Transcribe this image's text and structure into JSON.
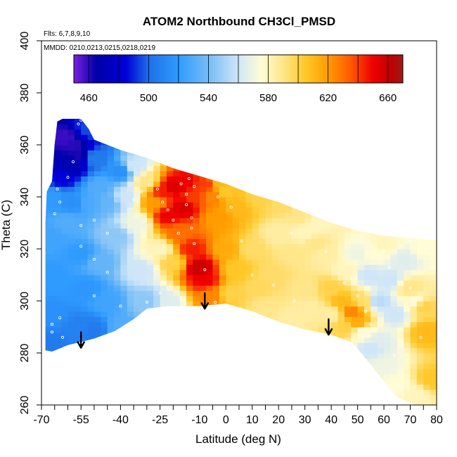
{
  "chart_data": {
    "type": "heatmap",
    "title": "ATOM2 Northbound CH3Cl_PMSD",
    "flights_label": "Flts: 6,7,8,9,10",
    "dates_label": "MMDD: 0210,0213,0215,0218,0219",
    "xlabel": "Latitude (deg N)",
    "ylabel": "Theta (C)",
    "xlim": [
      -70,
      80
    ],
    "ylim": [
      260,
      400
    ],
    "x_ticks": [
      -70,
      -55,
      -40,
      -25,
      -10,
      0,
      10,
      20,
      30,
      40,
      50,
      60,
      70,
      80
    ],
    "x_minor_ticks": [
      -65,
      -60,
      -50,
      -45,
      -35,
      -30,
      -20,
      -15,
      -5,
      5,
      15,
      25,
      35,
      45,
      55,
      65,
      75
    ],
    "y_ticks": [
      260,
      280,
      300,
      320,
      340,
      360,
      380,
      400
    ],
    "colorbar": {
      "min": 450,
      "max": 670,
      "tick_values": [
        460,
        500,
        540,
        580,
        620,
        660
      ],
      "bin_edges": [
        450,
        460,
        480,
        500,
        520,
        540,
        560,
        580,
        600,
        620,
        640,
        660,
        670
      ],
      "color_stops": [
        [
          450,
          "#7b1fe0"
        ],
        [
          465,
          "#0000a8"
        ],
        [
          485,
          "#0000d8"
        ],
        [
          500,
          "#1e6fe6"
        ],
        [
          520,
          "#2f9bff"
        ],
        [
          540,
          "#76bdf5"
        ],
        [
          560,
          "#cfe6f8"
        ],
        [
          575,
          "#fffcd6"
        ],
        [
          590,
          "#ffe68a"
        ],
        [
          605,
          "#ffc828"
        ],
        [
          620,
          "#ff9c00"
        ],
        [
          635,
          "#ff5a00"
        ],
        [
          650,
          "#ee0000"
        ],
        [
          662,
          "#c00000"
        ],
        [
          670,
          "#9c1a1a"
        ]
      ]
    },
    "grid": false,
    "field_boundary": [
      [
        -68.5,
        281
      ],
      [
        -66,
        280.5
      ],
      [
        -60,
        283
      ],
      [
        -50,
        285.5
      ],
      [
        -42,
        288.5
      ],
      [
        -35,
        293
      ],
      [
        -30,
        297
      ],
      [
        -22,
        298
      ],
      [
        -10,
        298
      ],
      [
        0,
        299
      ],
      [
        10,
        296
      ],
      [
        20,
        292
      ],
      [
        30,
        289
      ],
      [
        40,
        287
      ],
      [
        48,
        284
      ],
      [
        53,
        278
      ],
      [
        60,
        269
      ],
      [
        65,
        263
      ],
      [
        72,
        260
      ],
      [
        80,
        260
      ],
      [
        80,
        323.5
      ],
      [
        72,
        324
      ],
      [
        60,
        325
      ],
      [
        50,
        327
      ],
      [
        40,
        330
      ],
      [
        30,
        334
      ],
      [
        20,
        338
      ],
      [
        10,
        341
      ],
      [
        0,
        345
      ],
      [
        -10,
        348
      ],
      [
        -20,
        351
      ],
      [
        -30,
        355
      ],
      [
        -40,
        358
      ],
      [
        -50,
        362
      ],
      [
        -52,
        366
      ],
      [
        -55,
        370
      ],
      [
        -62,
        370
      ],
      [
        -64,
        369
      ],
      [
        -65,
        360
      ],
      [
        -66,
        346
      ],
      [
        -68,
        342
      ],
      [
        -68.5,
        330
      ]
    ],
    "anchors": [
      [
        -61,
        363,
        458
      ],
      [
        -58,
        360,
        460
      ],
      [
        -56,
        356,
        462
      ],
      [
        -59,
        352,
        470
      ],
      [
        -62,
        347,
        485
      ],
      [
        -52,
        366,
        495
      ],
      [
        -50,
        355,
        505
      ],
      [
        -48,
        344,
        530
      ],
      [
        -45,
        338,
        535
      ],
      [
        -66,
        340,
        520
      ],
      [
        -66,
        325,
        525
      ],
      [
        -66,
        310,
        520
      ],
      [
        -66,
        295,
        515
      ],
      [
        -67,
        283,
        505
      ],
      [
        -60,
        330,
        530
      ],
      [
        -55,
        318,
        520
      ],
      [
        -53,
        305,
        518
      ],
      [
        -56,
        290,
        508
      ],
      [
        -48,
        315,
        535
      ],
      [
        -45,
        300,
        525
      ],
      [
        -50,
        289,
        505
      ],
      [
        -40,
        290,
        530
      ],
      [
        -42,
        325,
        545
      ],
      [
        -40,
        350,
        515
      ],
      [
        -35,
        352,
        560
      ],
      [
        -30,
        346,
        590
      ],
      [
        -34,
        330,
        570
      ],
      [
        -32,
        312,
        560
      ],
      [
        -30,
        300,
        545
      ],
      [
        -22,
        300,
        565
      ],
      [
        -38,
        340,
        560
      ],
      [
        -27,
        338,
        620
      ],
      [
        -24,
        342,
        645
      ],
      [
        -20,
        344,
        655
      ],
      [
        -22,
        333,
        650
      ],
      [
        -16,
        336,
        655
      ],
      [
        -15,
        346,
        650
      ],
      [
        -12,
        340,
        640
      ],
      [
        -18,
        326,
        630
      ],
      [
        -13,
        320,
        645
      ],
      [
        -10,
        313,
        660
      ],
      [
        -8,
        308,
        650
      ],
      [
        -6,
        302,
        625
      ],
      [
        -20,
        315,
        600
      ],
      [
        -25,
        320,
        580
      ],
      [
        -8,
        345,
        640
      ],
      [
        -5,
        340,
        625
      ],
      [
        -2,
        346,
        610
      ],
      [
        0,
        342,
        605
      ],
      [
        -3,
        332,
        620
      ],
      [
        0,
        320,
        615
      ],
      [
        4,
        312,
        605
      ],
      [
        2,
        303,
        600
      ],
      [
        5,
        336,
        610
      ],
      [
        12,
        339,
        600
      ],
      [
        10,
        320,
        595
      ],
      [
        18,
        310,
        595
      ],
      [
        15,
        298,
        590
      ],
      [
        22,
        337,
        595
      ],
      [
        28,
        333,
        590
      ],
      [
        26,
        318,
        590
      ],
      [
        30,
        305,
        590
      ],
      [
        32,
        297,
        585
      ],
      [
        25,
        293,
        585
      ],
      [
        35,
        330,
        580
      ],
      [
        38,
        318,
        585
      ],
      [
        40,
        305,
        600
      ],
      [
        44,
        300,
        610
      ],
      [
        48,
        296,
        625
      ],
      [
        50,
        292,
        615
      ],
      [
        45,
        290,
        600
      ],
      [
        52,
        300,
        595
      ],
      [
        40,
        295,
        585
      ],
      [
        46,
        312,
        580
      ],
      [
        50,
        318,
        570
      ],
      [
        56,
        318,
        575
      ],
      [
        60,
        322,
        580
      ],
      [
        54,
        310,
        560
      ],
      [
        58,
        300,
        555
      ],
      [
        62,
        308,
        560
      ],
      [
        68,
        316,
        565
      ],
      [
        75,
        320,
        575
      ],
      [
        70,
        305,
        590
      ],
      [
        75,
        298,
        600
      ],
      [
        76,
        288,
        610
      ],
      [
        78,
        270,
        605
      ],
      [
        72,
        300,
        575
      ],
      [
        64,
        295,
        560
      ],
      [
        58,
        285,
        565
      ],
      [
        60,
        275,
        570
      ],
      [
        65,
        268,
        575
      ],
      [
        72,
        264,
        580
      ],
      [
        55,
        282,
        560
      ],
      [
        52,
        288,
        575
      ],
      [
        30,
        326,
        580
      ],
      [
        34,
        322,
        590
      ],
      [
        12,
        305,
        597
      ],
      [
        20,
        326,
        585
      ],
      [
        -52,
        338,
        528
      ],
      [
        -58,
        338,
        515
      ]
    ],
    "sample_points": [
      [
        -55,
        369.5
      ],
      [
        -56,
        368
      ],
      [
        -52.5,
        369
      ],
      [
        -58,
        353.5
      ],
      [
        -60,
        347.5
      ],
      [
        -64,
        343
      ],
      [
        -63,
        338
      ],
      [
        -65,
        333.5
      ],
      [
        -50,
        331
      ],
      [
        -55,
        329
      ],
      [
        -45,
        326
      ],
      [
        -55,
        321
      ],
      [
        -50,
        316
      ],
      [
        -45,
        311
      ],
      [
        -50,
        302
      ],
      [
        -40,
        298
      ],
      [
        -30,
        299.5
      ],
      [
        -25,
        303
      ],
      [
        -63,
        293.5
      ],
      [
        -66,
        291
      ],
      [
        -66,
        288
      ],
      [
        -62,
        286
      ],
      [
        -56,
        283
      ],
      [
        -43,
        285.5
      ],
      [
        -35,
        339
      ],
      [
        -32,
        342
      ],
      [
        -29,
        344.5
      ],
      [
        -26,
        343
      ],
      [
        -24,
        338
      ],
      [
        -22,
        335
      ],
      [
        -20,
        331
      ],
      [
        -18,
        326
      ],
      [
        -17,
        345
      ],
      [
        -14,
        347
      ],
      [
        -12,
        344
      ],
      [
        -15,
        341
      ],
      [
        -15,
        337
      ],
      [
        -13,
        332
      ],
      [
        -13,
        328
      ],
      [
        -12,
        322
      ],
      [
        -8,
        312
      ],
      [
        -4,
        299.5
      ],
      [
        -3,
        340
      ],
      [
        0,
        346
      ],
      [
        2,
        336
      ],
      [
        6,
        323
      ],
      [
        10,
        310
      ],
      [
        18,
        306
      ],
      [
        25,
        326
      ],
      [
        26,
        300
      ],
      [
        38,
        319
      ],
      [
        45,
        307
      ],
      [
        50,
        302
      ],
      [
        53,
        296
      ],
      [
        55,
        291
      ],
      [
        60,
        319
      ],
      [
        62,
        313
      ],
      [
        70,
        305
      ],
      [
        76,
        320
      ],
      [
        74,
        286
      ],
      [
        64,
        279
      ],
      [
        70,
        323
      ]
    ],
    "annotations": [
      {
        "type": "down-arrow",
        "x": -55,
        "y_top": 288,
        "y_bottom": 282
      },
      {
        "type": "down-arrow",
        "x": -8,
        "y_top": 303,
        "y_bottom": 297
      },
      {
        "type": "down-arrow",
        "x": 39,
        "y_top": 293,
        "y_bottom": 287
      }
    ]
  }
}
